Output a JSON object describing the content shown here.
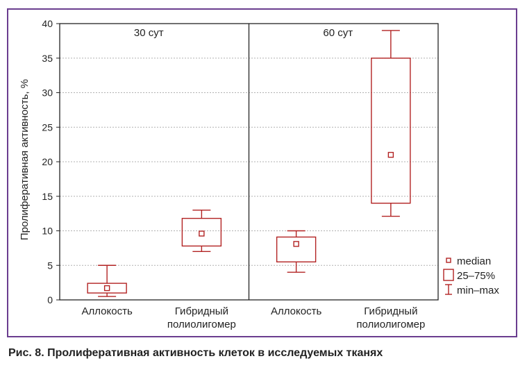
{
  "caption": "Рис. 8. Пролиферативная активность клеток в исследуемых тканях",
  "colors": {
    "frame": "#6a3d8f",
    "box": "#b22222",
    "axis": "#222222",
    "grid": "#b0b0b0"
  },
  "chart_data": {
    "type": "boxplot",
    "ylabel": "Пролиферативная активность, %",
    "ylim": [
      0,
      40
    ],
    "yticks": [
      0,
      5,
      10,
      15,
      20,
      25,
      30,
      35,
      40
    ],
    "grid": true,
    "legend_position": "right",
    "legend": {
      "median": "median",
      "box": "25–75%",
      "whisker": "min–max"
    },
    "panels": [
      {
        "title": "30 сут",
        "groups": [
          {
            "label": [
              "Аллокость"
            ],
            "min": 0.5,
            "q1": 1,
            "median": 1.7,
            "q3": 2.4,
            "max": 5
          },
          {
            "label": [
              "Гибридный",
              "полиолигомер"
            ],
            "min": 7,
            "q1": 7.8,
            "median": 9.6,
            "q3": 11.8,
            "max": 13
          }
        ]
      },
      {
        "title": "60 сут",
        "groups": [
          {
            "label": [
              "Аллокость"
            ],
            "min": 4,
            "q1": 5.5,
            "median": 8.1,
            "q3": 9.1,
            "max": 10
          },
          {
            "label": [
              "Гибридный",
              "полиолигомер"
            ],
            "min": 12.1,
            "q1": 14,
            "median": 21,
            "q3": 35,
            "max": 39
          }
        ]
      }
    ]
  }
}
